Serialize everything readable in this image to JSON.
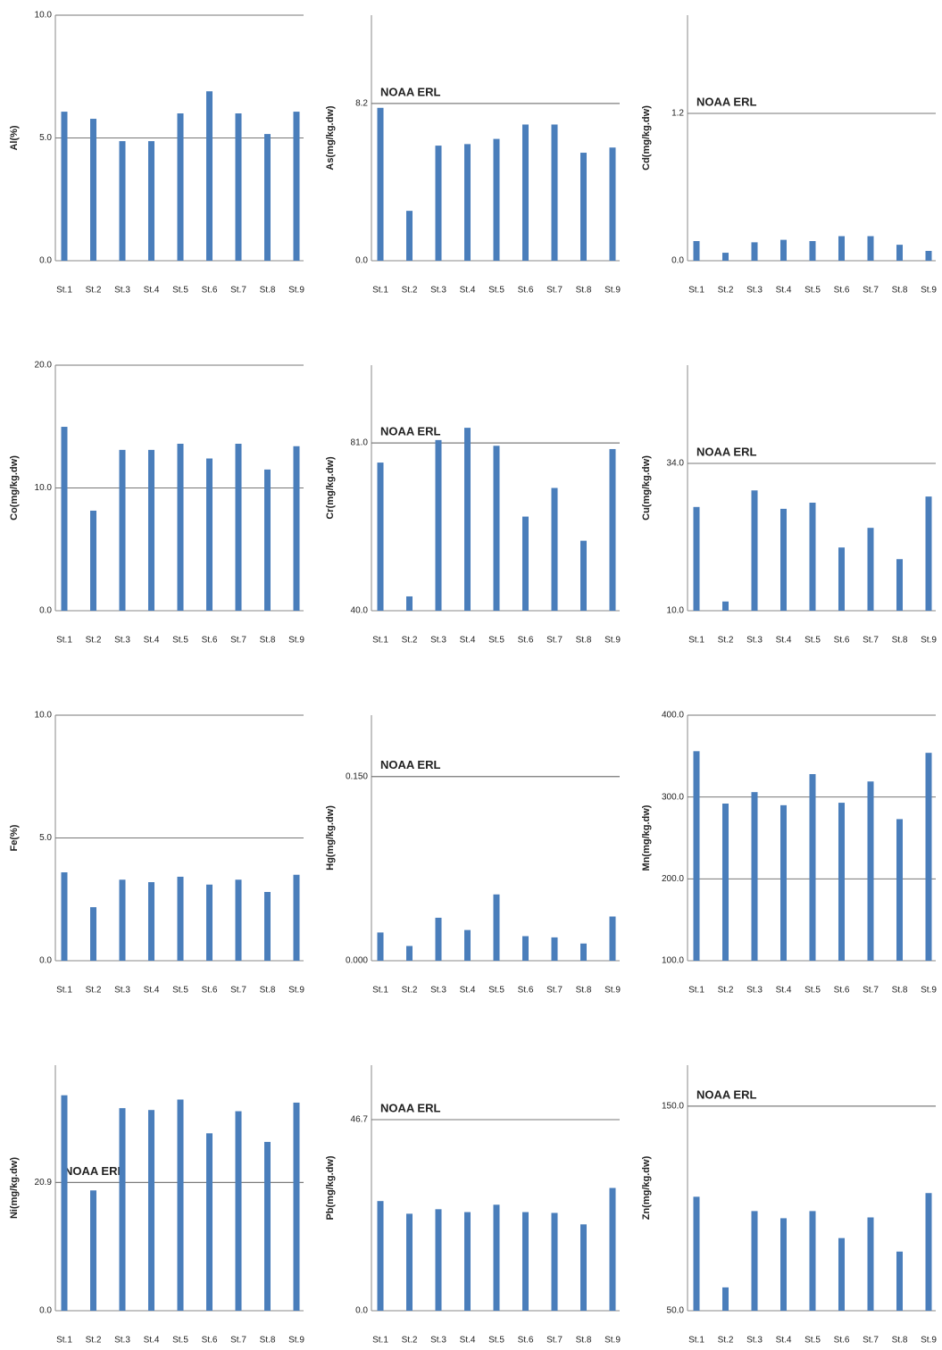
{
  "chart_data": [
    {
      "type": "bar",
      "y_label": "Al(%)",
      "categories": [
        "St.1",
        "St.2",
        "St.3",
        "St.4",
        "St.5",
        "St.6",
        "St.7",
        "St.8",
        "St.9"
      ],
      "values": [
        6.07,
        5.78,
        4.87,
        4.87,
        6.0,
        6.9,
        6.0,
        5.16,
        6.07
      ],
      "color": "#4a7ebb",
      "ylim": [
        0,
        10
      ],
      "yticks": [
        {
          "value": 0,
          "label": "0.0"
        },
        {
          "value": 5,
          "label": "5.0"
        },
        {
          "value": 10,
          "label": "10.0"
        }
      ],
      "grid": true
    },
    {
      "type": "bar",
      "y_label": "As(mg/kg.dw)",
      "categories": [
        "St.1",
        "St.2",
        "St.3",
        "St.4",
        "St.5",
        "St.6",
        "St.7",
        "St.8",
        "St.9"
      ],
      "values": [
        7.97,
        2.6,
        6.0,
        6.08,
        6.35,
        7.1,
        7.1,
        5.63,
        5.9
      ],
      "color": "#4a7ebb",
      "ylim": [
        0,
        12.8
      ],
      "yticks": [
        {
          "value": 0,
          "label": "0.0"
        },
        8.2
      ],
      "grid": true,
      "reference": {
        "label": "NOAA ERL",
        "value": 8.2
      }
    },
    {
      "type": "bar",
      "y_label": "Cd(mg/kg.dw)",
      "categories": [
        "St.1",
        "St.2",
        "St.3",
        "St.4",
        "St.5",
        "St.6",
        "St.7",
        "St.8",
        "St.9"
      ],
      "values": [
        0.16,
        0.065,
        0.15,
        0.17,
        0.16,
        0.2,
        0.2,
        0.13,
        0.08
      ],
      "color": "#4a7ebb",
      "ylim": [
        0,
        2.0
      ],
      "yticks": [
        {
          "value": 0,
          "label": "0.0"
        },
        1.2
      ],
      "grid": true,
      "reference": {
        "label": "NOAA ERL",
        "value": 1.2
      }
    },
    {
      "type": "bar",
      "y_label": "Co(mg/kg.dw)",
      "categories": [
        "St.1",
        "St.2",
        "St.3",
        "St.4",
        "St.5",
        "St.6",
        "St.7",
        "St.8",
        "St.9"
      ],
      "values": [
        14.98,
        8.15,
        13.1,
        13.1,
        13.6,
        12.4,
        13.6,
        11.5,
        13.4
      ],
      "color": "#4a7ebb",
      "ylim": [
        0,
        20
      ],
      "yticks": [
        {
          "value": 0,
          "label": "0.0"
        },
        {
          "value": 10,
          "label": "10.0"
        },
        {
          "value": 20,
          "label": "20.0"
        }
      ],
      "grid": true
    },
    {
      "type": "bar",
      "y_label": "Cr(mg/kg.dw)",
      "categories": [
        "St.1",
        "St.2",
        "St.3",
        "St.4",
        "St.5",
        "St.6",
        "St.7",
        "St.8",
        "St.9"
      ],
      "values": [
        76.2,
        43.5,
        81.7,
        84.7,
        80.3,
        63,
        70,
        57.1,
        79.5
      ],
      "color": "#4a7ebb",
      "ylim": [
        40,
        100
      ],
      "yticks": [
        {
          "value": 40,
          "label": "40.0"
        },
        {
          "value": 81,
          "label": "81.0"
        }
      ],
      "grid": true,
      "reference": {
        "label": "NOAA ERL",
        "value": 81
      }
    },
    {
      "type": "bar",
      "y_label": "Cu(mg/kg.dw)",
      "categories": [
        "St.1",
        "St.2",
        "St.3",
        "St.4",
        "St.5",
        "St.6",
        "St.7",
        "St.8",
        "St.9"
      ],
      "values": [
        26.9,
        11.5,
        29.6,
        26.6,
        27.6,
        20.3,
        23.5,
        18.4,
        28.6
      ],
      "color": "#4a7ebb",
      "ylim": [
        10,
        50
      ],
      "yticks": [
        {
          "value": 10,
          "label": "10.0"
        },
        {
          "value": 34,
          "label": "34.0"
        }
      ],
      "grid": true,
      "reference": {
        "label": "NOAA ERL",
        "value": 34
      }
    },
    {
      "type": "bar",
      "y_label": "Fe(%)",
      "categories": [
        "St.1",
        "St.2",
        "St.3",
        "St.4",
        "St.5",
        "St.6",
        "St.7",
        "St.8",
        "St.9"
      ],
      "values": [
        3.6,
        2.18,
        3.3,
        3.2,
        3.42,
        3.1,
        3.3,
        2.8,
        3.5
      ],
      "color": "#4a7ebb",
      "ylim": [
        0,
        10
      ],
      "yticks": [
        {
          "value": 0,
          "label": "0.0"
        },
        {
          "value": 5,
          "label": "5.0"
        },
        {
          "value": 10,
          "label": "10.0"
        }
      ],
      "grid": true
    },
    {
      "type": "bar",
      "y_label": "Hg(mg/kg.dw)",
      "categories": [
        "St.1",
        "St.2",
        "St.3",
        "St.4",
        "St.5",
        "St.6",
        "St.7",
        "St.8",
        "St.9"
      ],
      "values": [
        0.023,
        0.012,
        0.035,
        0.025,
        0.054,
        0.02,
        0.019,
        0.014,
        0.036
      ],
      "color": "#4a7ebb",
      "ylim": [
        0,
        0.2
      ],
      "yticks": [
        {
          "value": 0,
          "label": "0.000"
        },
        {
          "value": 0.15,
          "label": "0.150"
        }
      ],
      "grid": true,
      "reference": {
        "label": "NOAA ERL",
        "value": 0.15
      }
    },
    {
      "type": "bar",
      "y_label": "Mn(mg/kg.dw)",
      "categories": [
        "St.1",
        "St.2",
        "St.3",
        "St.4",
        "St.5",
        "St.6",
        "St.7",
        "St.8",
        "St.9"
      ],
      "values": [
        356,
        292,
        306,
        290,
        328,
        293,
        319,
        273,
        354
      ],
      "color": "#4a7ebb",
      "ylim": [
        100,
        400
      ],
      "yticks": [
        {
          "value": 100,
          "label": "100.0"
        },
        {
          "value": 200,
          "label": "200.0"
        },
        {
          "value": 300,
          "label": "300.0"
        },
        {
          "value": 400,
          "label": "400.0"
        }
      ],
      "grid": true
    },
    {
      "type": "bar",
      "y_label": "Ni(mg/kg.dw)",
      "categories": [
        "St.1",
        "St.2",
        "St.3",
        "St.4",
        "St.5",
        "St.6",
        "St.7",
        "St.8",
        "St.9"
      ],
      "values": [
        35.1,
        19.6,
        33.0,
        32.7,
        34.4,
        28.9,
        32.5,
        27.5,
        33.9
      ],
      "color": "#4a7ebb",
      "ylim": [
        0,
        40
      ],
      "yticks": [
        {
          "value": 0,
          "label": "0.0"
        },
        20.9
      ],
      "grid": true,
      "reference": {
        "label": "NOAA ERL",
        "value": 20.9
      }
    },
    {
      "type": "bar",
      "y_label": "Pb(mg/kg.dw)",
      "categories": [
        "St.1",
        "St.2",
        "St.3",
        "St.4",
        "St.5",
        "St.6",
        "St.7",
        "St.8",
        "St.9"
      ],
      "values": [
        26.8,
        23.7,
        24.8,
        24.1,
        25.9,
        24.1,
        23.9,
        21.1,
        30.0
      ],
      "color": "#4a7ebb",
      "ylim": [
        0,
        60
      ],
      "yticks": [
        {
          "value": 0,
          "label": "0.0"
        },
        46.7
      ],
      "grid": true,
      "reference": {
        "label": "NOAA ERL",
        "value": 46.7
      }
    },
    {
      "type": "bar",
      "y_label": "Zn(mg/kg.dw)",
      "categories": [
        "St.1",
        "St.2",
        "St.3",
        "St.4",
        "St.5",
        "St.6",
        "St.7",
        "St.8",
        "St.9"
      ],
      "values": [
        105.7,
        61.4,
        98.7,
        95.2,
        98.7,
        85.5,
        95.6,
        78.9,
        107.5
      ],
      "color": "#4a7ebb",
      "ylim": [
        50,
        170
      ],
      "yticks": [
        {
          "value": 50,
          "label": "50.0"
        },
        {
          "value": 150,
          "label": "150.0"
        }
      ],
      "grid": true,
      "reference": {
        "label": "NOAA ERL",
        "value": 150
      }
    }
  ]
}
